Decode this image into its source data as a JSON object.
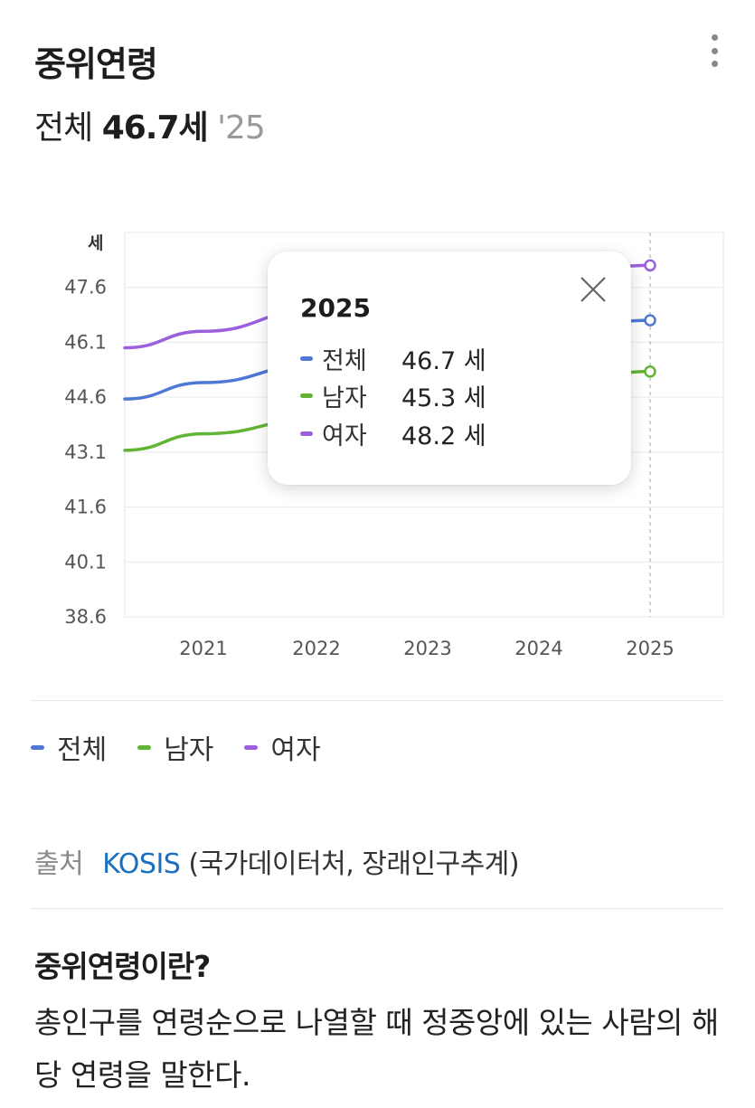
{
  "header": {
    "title": "중위연령",
    "summary_label": "전체",
    "summary_value": "46.7세",
    "summary_year": "'25"
  },
  "chart_data": {
    "type": "line",
    "ylabel": "세",
    "ylim": [
      38.6,
      49.1
    ],
    "yticks": [
      "47.6",
      "46.1",
      "44.6",
      "43.1",
      "41.6",
      "40.1",
      "38.6"
    ],
    "x": [
      "2021",
      "2022",
      "2023",
      "2024",
      "2025"
    ],
    "grid": true,
    "series": [
      {
        "name": "전체",
        "color": "#4f78d6",
        "values": [
          45.0,
          45.5,
          46.0,
          46.3,
          46.7
        ]
      },
      {
        "name": "남자",
        "color": "#62b534",
        "values": [
          43.6,
          44.0,
          44.6,
          44.9,
          45.3
        ]
      },
      {
        "name": "여자",
        "color": "#9c5fde",
        "values": [
          46.4,
          47.0,
          47.4,
          47.8,
          48.2
        ]
      }
    ]
  },
  "tooltip": {
    "year": "2025",
    "rows": [
      {
        "name": "전체",
        "value": "46.7 세",
        "color": "#4f78d6"
      },
      {
        "name": "남자",
        "value": "45.3 세",
        "color": "#62b534"
      },
      {
        "name": "여자",
        "value": "48.2 세",
        "color": "#9c5fde"
      }
    ]
  },
  "legend": [
    {
      "name": "전체",
      "color": "#4f78d6"
    },
    {
      "name": "남자",
      "color": "#62b534"
    },
    {
      "name": "여자",
      "color": "#9c5fde"
    }
  ],
  "source": {
    "label": "출처",
    "link": "KOSIS",
    "detail": "(국가데이터처, 장래인구추계)"
  },
  "definition": {
    "title": "중위연령이란?",
    "body": "총인구를 연령순으로 나열할 때 정중앙에 있는 사람의 해당 연령을 말한다."
  }
}
